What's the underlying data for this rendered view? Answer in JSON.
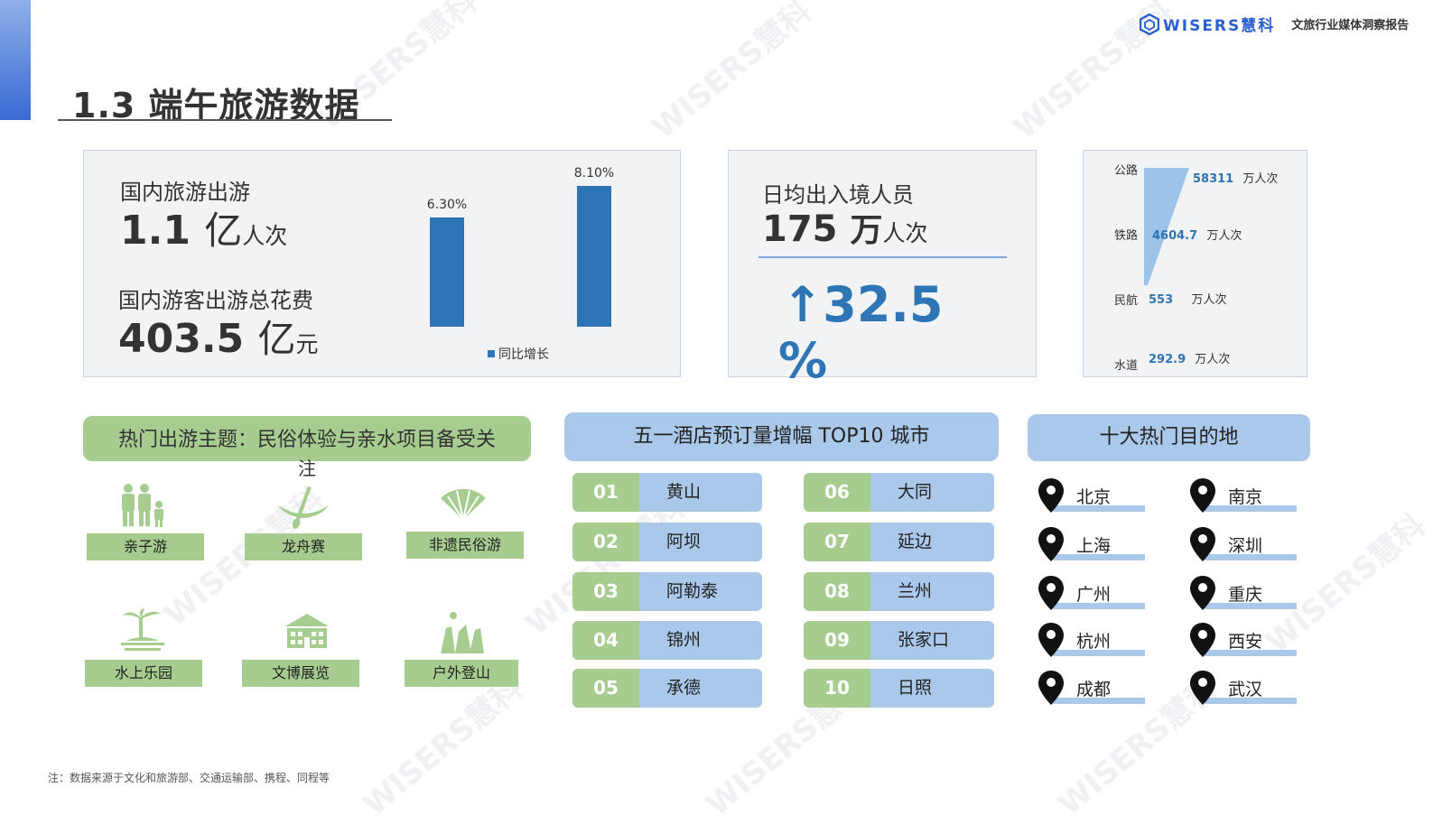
{
  "header": {
    "section_title": "1.3  端午旅游数据",
    "logo_text": "WISERS慧科",
    "report_name": "文旅行业媒体洞察报告",
    "watermark": "WISERS慧科"
  },
  "domestic": {
    "trips_label": "国内旅游出游",
    "trips_value": "1.1",
    "trips_unit": "亿",
    "trips_subunit": "人次",
    "spend_label": "国内游客出游总花费",
    "spend_value": "403.5",
    "spend_unit": "亿",
    "spend_subunit": "元",
    "chart_legend": "同比增长"
  },
  "chart_data": {
    "type": "bar",
    "categories": [
      "",
      ""
    ],
    "values": [
      6.3,
      8.1
    ],
    "data_labels": [
      "6.30%",
      "8.10%"
    ],
    "legend": "同比增长",
    "ylim": [
      0,
      8.1
    ],
    "title": "",
    "xlabel": "",
    "ylabel": ""
  },
  "border": {
    "label": "日均出入境人员",
    "value": "175",
    "unit": "万",
    "subunit": "人次",
    "growth_line1": "↑32.5",
    "growth_line2": "%"
  },
  "transport": {
    "items": [
      {
        "label": "公路",
        "value": "58311",
        "unit": "万人次"
      },
      {
        "label": "铁路",
        "value": "4604.7",
        "unit": "万人次"
      },
      {
        "label": "民航",
        "value": "553",
        "unit": "万人次"
      },
      {
        "label": "水道",
        "value": "292.9",
        "unit": "万人次"
      }
    ],
    "funnel_color": "#9cc3e8"
  },
  "themes": {
    "title_line1": "热门出游主题：民俗体验与亲水项目备受关",
    "title_line2": "注",
    "items": [
      {
        "label": "亲子游",
        "icon": "family-icon"
      },
      {
        "label": "龙舟赛",
        "icon": "canoe-icon"
      },
      {
        "label": "非遗民俗游",
        "icon": "fan-icon"
      },
      {
        "label": "水上乐园",
        "icon": "island-icon"
      },
      {
        "label": "文博展览",
        "icon": "museum-icon"
      },
      {
        "label": "户外登山",
        "icon": "mountain-icon"
      }
    ],
    "accent_color": "#a6cd8f"
  },
  "hotels": {
    "title": "五一酒店预订量增幅 TOP10 城市",
    "left": [
      {
        "rank": "01",
        "city": "黄山"
      },
      {
        "rank": "02",
        "city": "阿坝"
      },
      {
        "rank": "03",
        "city": "阿勒泰"
      },
      {
        "rank": "04",
        "city": "锦州"
      },
      {
        "rank": "05",
        "city": "承德"
      }
    ],
    "right": [
      {
        "rank": "06",
        "city": "大同"
      },
      {
        "rank": "07",
        "city": "延边"
      },
      {
        "rank": "08",
        "city": "兰州"
      },
      {
        "rank": "09",
        "city": "张家口"
      },
      {
        "rank": "10",
        "city": "日照"
      }
    ]
  },
  "destinations": {
    "title": "十大热门目的地",
    "left": [
      "北京",
      "上海",
      "广州",
      "杭州",
      "成都"
    ],
    "right": [
      "南京",
      "深圳",
      "重庆",
      "西安",
      "武汉"
    ]
  },
  "footer": {
    "note": "注：数据来源于文化和旅游部、交通运输部、携程、同程等"
  },
  "colors": {
    "accent_blue": "#2e75b6",
    "light_blue": "#a9c8ea",
    "green": "#a6cd8f"
  }
}
